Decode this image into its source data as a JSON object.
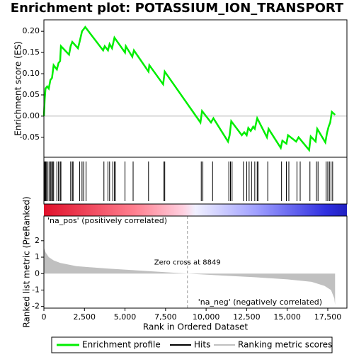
{
  "chart_data": [
    {
      "type": "line",
      "title": "Enrichment plot: POTASSIUM_ION_TRANSPORT",
      "y_label": "Enrichment score (ES)",
      "name": "Enrichment profile",
      "color": "#00ee00",
      "x": [
        0,
        50,
        100,
        200,
        300,
        400,
        500,
        600,
        800,
        900,
        1000,
        1050,
        1550,
        1650,
        1750,
        2100,
        2200,
        2350,
        2550,
        3650,
        3750,
        3950,
        4050,
        4200,
        4350,
        5000,
        5050,
        5450,
        5550,
        6450,
        6500,
        7350,
        7450,
        9650,
        9750,
        10300,
        10450,
        11350,
        11450,
        11550,
        12200,
        12350,
        12500,
        12600,
        12750,
        12900,
        13000,
        13150,
        13750,
        13850,
        14600,
        14700,
        14950,
        15050,
        15550,
        15700,
        16350,
        16450,
        16750,
        16850,
        17350,
        17450,
        17550,
        17650,
        17750,
        17950
      ],
      "values": [
        0,
        0.04,
        0.065,
        0.07,
        0.065,
        0.085,
        0.09,
        0.12,
        0.11,
        0.125,
        0.13,
        0.165,
        0.145,
        0.165,
        0.175,
        0.16,
        0.175,
        0.2,
        0.21,
        0.155,
        0.165,
        0.155,
        0.17,
        0.16,
        0.185,
        0.15,
        0.165,
        0.14,
        0.155,
        0.105,
        0.12,
        0.075,
        0.105,
        -0.015,
        0.012,
        -0.015,
        -0.005,
        -0.06,
        -0.045,
        -0.012,
        -0.045,
        -0.038,
        -0.045,
        -0.028,
        -0.035,
        -0.025,
        -0.03,
        -0.005,
        -0.05,
        -0.03,
        -0.075,
        -0.058,
        -0.065,
        -0.045,
        -0.06,
        -0.05,
        -0.08,
        -0.048,
        -0.06,
        -0.03,
        -0.062,
        -0.04,
        -0.025,
        -0.015,
        0.01,
        0.003
      ],
      "xlim": [
        0,
        18680
      ],
      "ylim": [
        -0.097,
        0.227
      ],
      "yticks": [
        {
          "value": 0.2,
          "label": "0.20"
        },
        {
          "value": 0.15,
          "label": "0.15"
        },
        {
          "value": 0.1,
          "label": "0.10"
        },
        {
          "value": 0.05,
          "label": "0.05"
        },
        {
          "value": 0,
          "label": "0.00"
        },
        {
          "value": -0.05,
          "label": "-0.05"
        }
      ]
    },
    {
      "type": "hits",
      "name": "Hits",
      "color": "#000000",
      "x": [
        20,
        60,
        110,
        160,
        250,
        330,
        420,
        480,
        550,
        600,
        800,
        900,
        1000,
        1050,
        1650,
        1750,
        1800,
        2200,
        2350,
        2450,
        2600,
        3700,
        3950,
        4050,
        4250,
        4350,
        4400,
        5000,
        5500,
        6450,
        7400,
        7450,
        9700,
        9800,
        10400,
        11400,
        11500,
        11600,
        12300,
        12500,
        12650,
        12800,
        13000,
        13150,
        13200,
        13800,
        14650,
        14950,
        15100,
        15600,
        15800,
        16400,
        16800,
        16900,
        17400,
        17500,
        17600,
        17700,
        17800
      ],
      "xlim": [
        0,
        18680
      ]
    },
    {
      "type": "area",
      "name": "Ranking metric scores",
      "color": "#c0c0c0",
      "y_label": "Ranked list metric (PreRanked)",
      "x_label": "Rank in Ordered Dataset",
      "x": [
        0,
        100,
        300,
        600,
        1000,
        2000,
        4000,
        6000,
        8849,
        11000,
        13000,
        15000,
        16500,
        17300,
        17700,
        17900,
        17950
      ],
      "values": [
        1.6,
        1.3,
        1.0,
        0.8,
        0.65,
        0.45,
        0.3,
        0.18,
        0,
        -0.12,
        -0.22,
        -0.35,
        -0.5,
        -0.75,
        -1.0,
        -1.5,
        -1.9
      ],
      "xlim": [
        0,
        18680
      ],
      "ylim": [
        -2.1,
        3.5
      ],
      "yticks": [
        2,
        1,
        0,
        -1,
        -2
      ],
      "xticks": [
        0,
        {
          "value": 2500,
          "label": "2,500"
        },
        {
          "value": 5000,
          "label": "5,000"
        },
        {
          "value": 7500,
          "label": "7,500"
        },
        {
          "value": 10000,
          "label": "10,000"
        },
        {
          "value": 12500,
          "label": "12,500"
        },
        {
          "value": 15000,
          "label": "15,000"
        },
        {
          "value": 17500,
          "label": "17,500"
        }
      ],
      "zero_cross": 8849,
      "zero_cross_label": "Zero cross at 8849",
      "pos_label": "'na_pos' (positively correlated)",
      "neg_label": "'na_neg' (negatively correlated)"
    }
  ]
}
